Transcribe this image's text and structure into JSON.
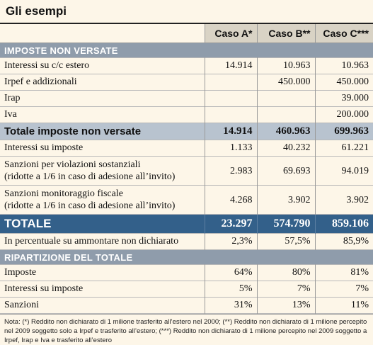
{
  "title": "Gli esempi",
  "columns": [
    "Caso A*",
    "Caso B**",
    "Caso C***"
  ],
  "sections": {
    "imposte": "IMPOSTE NON VERSATE",
    "ripartizione": "RIPARTIZIONE DEL TOTALE"
  },
  "rows": [
    {
      "label": "Interessi su c/c estero",
      "a": "14.914",
      "b": "10.963",
      "c": "10.963"
    },
    {
      "label": "Irpef e addizionali",
      "a": "",
      "b": "450.000",
      "c": "450.000"
    },
    {
      "label": "Irap",
      "a": "",
      "b": "",
      "c": "39.000"
    },
    {
      "label": "Iva",
      "a": "",
      "b": "",
      "c": "200.000"
    }
  ],
  "subtotal": {
    "label": "Totale imposte non versate",
    "a": "14.914",
    "b": "460.963",
    "c": "699.963"
  },
  "rows2": [
    {
      "label": "Interessi su imposte",
      "a": "1.133",
      "b": "40.232",
      "c": "61.221"
    },
    {
      "label1": "Sanzioni per violazioni sostanziali",
      "label2": "(ridotte a 1/6 in caso di adesione all’invito)",
      "a": "2.983",
      "b": "69.693",
      "c": "94.019"
    },
    {
      "label1": "Sanzioni monitoraggio fiscale",
      "label2": "(ridotte a 1/6 in caso di adesione all’invito)",
      "a": "4.268",
      "b": "3.902",
      "c": "3.902"
    }
  ],
  "total": {
    "label": "TOTALE",
    "a": "23.297",
    "b": "574.790",
    "c": "859.106"
  },
  "percent": {
    "label": "In percentuale su ammontare non dichiarato",
    "a": "2,3%",
    "b": "57,5%",
    "c": "85,9%"
  },
  "ripartizione": [
    {
      "label": "Imposte",
      "a": "64%",
      "b": "80%",
      "c": "81%"
    },
    {
      "label": "Interessi su imposte",
      "a": "5%",
      "b": "7%",
      "c": "7%"
    },
    {
      "label": "Sanzioni",
      "a": "31%",
      "b": "13%",
      "c": "11%"
    }
  ],
  "note": "Nota: (*) Reddito non dichiarato di 1 milione trasferito all’estero nel 2000; (**) Reddito non dichiarato di 1 milione percepito nel 2009 soggetto solo a Irpef e trasferito all’estero; (***) Reddito non dichiarato di 1 milione percepito nel 2009 soggetto a Irpef, Irap e Iva e trasferito all’estero"
}
